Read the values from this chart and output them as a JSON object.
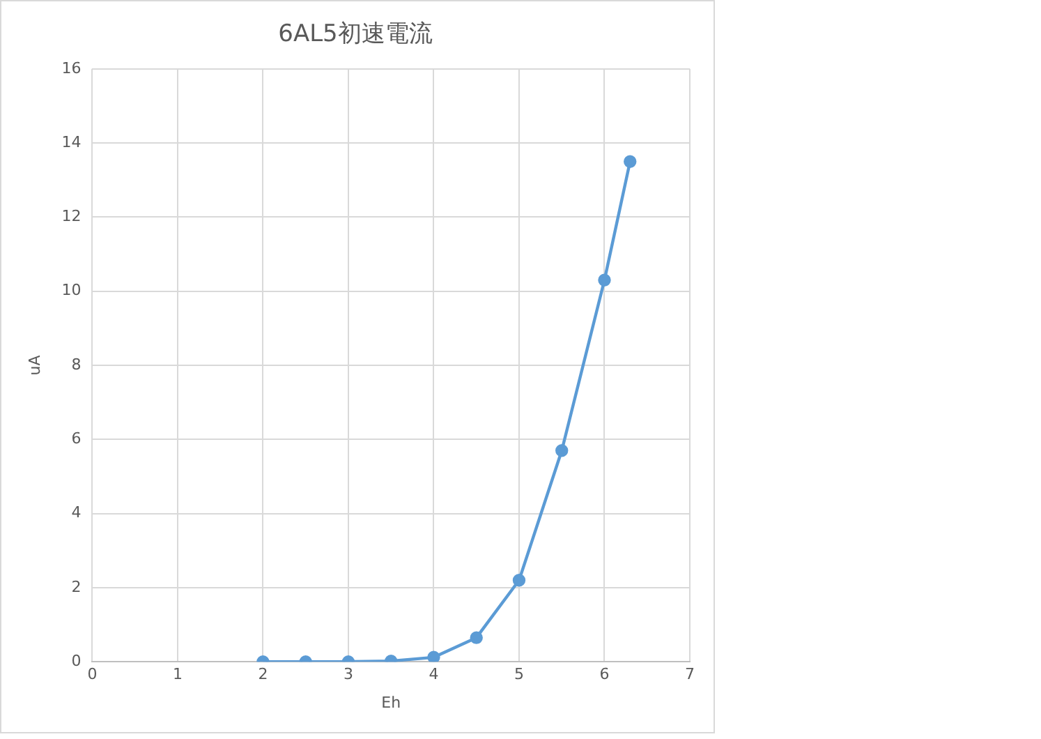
{
  "chart_data": {
    "type": "line",
    "title": "6AL5初速電流",
    "xlabel": "Eh",
    "ylabel": "uA",
    "series": [
      {
        "color": "#5b9bd5",
        "x": [
          2,
          2.5,
          3,
          3.5,
          4,
          4.5,
          5,
          5.5,
          6,
          6.3
        ],
        "values": [
          0,
          0,
          0,
          0.02,
          0.12,
          0.65,
          2.2,
          5.7,
          10.3,
          13.5
        ]
      }
    ],
    "xlim": [
      0,
      7
    ],
    "xticks": [
      0,
      1,
      2,
      3,
      4,
      5,
      6,
      7
    ],
    "ylim": [
      0,
      16
    ],
    "yticks": [
      0,
      2,
      4,
      6,
      8,
      10,
      12,
      14,
      16
    ],
    "grid": true,
    "legend": false,
    "marker": "circle",
    "line_style": "solid"
  }
}
